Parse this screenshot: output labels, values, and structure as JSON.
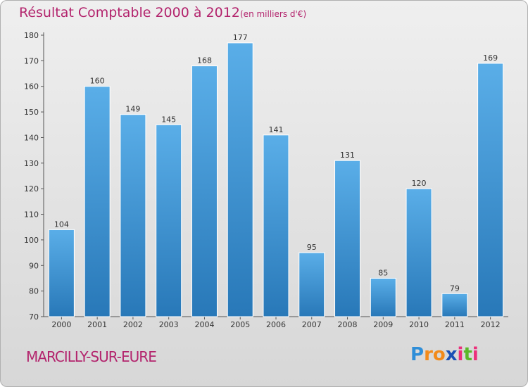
{
  "title": "Résultat Comptable 2000 à 2012",
  "subtitle": "(en milliers d'€)",
  "commune": "MARCILLY-SUR-EURE",
  "logo": {
    "letters": [
      "P",
      "r",
      "o",
      "x",
      "i",
      "t",
      "i"
    ],
    "colors": [
      "#2f8ed8",
      "#f28a1a",
      "#f28a1a",
      "#1a4fb5",
      "#ec2f7b",
      "#5bb829",
      "#ec2f7b"
    ]
  },
  "colors": {
    "bar_top": "#5aaee8",
    "bar_bottom": "#2878b8",
    "title": "#b3246d"
  },
  "chart_data": {
    "type": "bar",
    "categories": [
      "2000",
      "2001",
      "2002",
      "2003",
      "2004",
      "2005",
      "2006",
      "2007",
      "2008",
      "2009",
      "2010",
      "2011",
      "2012"
    ],
    "values": [
      104,
      160,
      149,
      145,
      168,
      177,
      141,
      95,
      131,
      85,
      120,
      79,
      169
    ],
    "ylim": [
      70,
      180
    ],
    "yticks": [
      70,
      80,
      90,
      100,
      110,
      120,
      130,
      140,
      150,
      160,
      170,
      180
    ],
    "title": "Résultat Comptable 2000 à 2012",
    "xlabel": "",
    "ylabel": "",
    "grid": false
  }
}
